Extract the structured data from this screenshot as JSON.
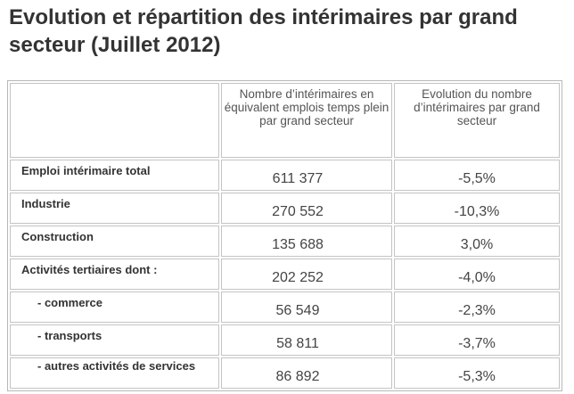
{
  "title": "Evolution et répartition des intérimaires par grand secteur (Juillet 2012)",
  "table": {
    "headers": {
      "label": "",
      "count": "Nombre d’intérimaires en équivalent emplois temps plein par grand secteur",
      "evolution": "Evolution du nombre d’intérimaires par grand secteur"
    },
    "rows": [
      {
        "label": "Emploi intérimaire total",
        "count": "611 377",
        "evolution": "-5,5%"
      },
      {
        "label": "Industrie",
        "count": "270 552",
        "evolution": "-10,3%"
      },
      {
        "label": "Construction",
        "count": "135 688",
        "evolution": "3,0%"
      },
      {
        "label": "Activités tertiaires dont :",
        "count": "202 252",
        "evolution": "-4,0%"
      },
      {
        "label": "- commerce",
        "count": "56 549",
        "evolution": "-2,3%"
      },
      {
        "label": "- transports",
        "count": "58 811",
        "evolution": "-3,7%"
      },
      {
        "label": "- autres activités de services",
        "count": "86 892",
        "evolution": "-5,3%"
      }
    ]
  }
}
